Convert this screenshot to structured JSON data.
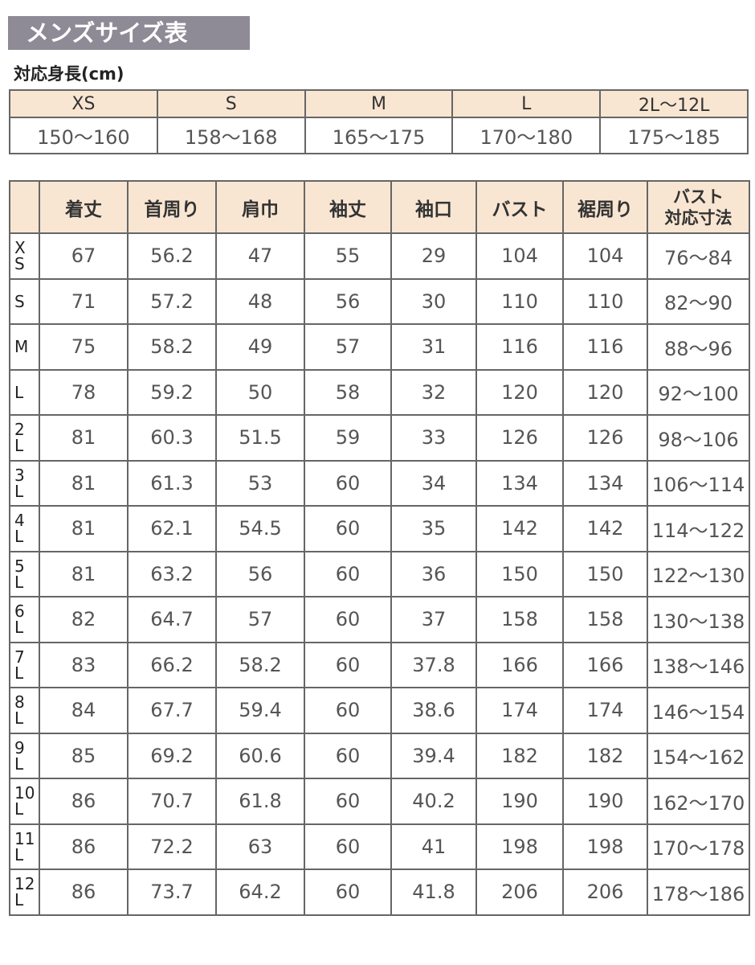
{
  "title": "メンズサイズ表",
  "height_label": "対応身長(cm)",
  "height_table": {
    "sizes": [
      "XS",
      "S",
      "M",
      "L",
      "2L〜12L"
    ],
    "ranges": [
      "150〜160",
      "158〜168",
      "165〜175",
      "170〜180",
      "175〜185"
    ]
  },
  "size_table": {
    "headers": [
      "",
      "着丈",
      "首周り",
      "肩巾",
      "袖丈",
      "袖口",
      "バスト",
      "裾周り",
      "バスト\n対応寸法"
    ],
    "rows": [
      [
        "X\nS",
        "67",
        "56.2",
        "47",
        "55",
        "29",
        "104",
        "104",
        "76〜84"
      ],
      [
        "S",
        "71",
        "57.2",
        "48",
        "56",
        "30",
        "110",
        "110",
        "82〜90"
      ],
      [
        "M",
        "75",
        "58.2",
        "49",
        "57",
        "31",
        "116",
        "116",
        "88〜96"
      ],
      [
        "L",
        "78",
        "59.2",
        "50",
        "58",
        "32",
        "120",
        "120",
        "92〜100"
      ],
      [
        "2\nL",
        "81",
        "60.3",
        "51.5",
        "59",
        "33",
        "126",
        "126",
        "98〜106"
      ],
      [
        "3\nL",
        "81",
        "61.3",
        "53",
        "60",
        "34",
        "134",
        "134",
        "106〜114"
      ],
      [
        "4\nL",
        "81",
        "62.1",
        "54.5",
        "60",
        "35",
        "142",
        "142",
        "114〜122"
      ],
      [
        "5\nL",
        "81",
        "63.2",
        "56",
        "60",
        "36",
        "150",
        "150",
        "122〜130"
      ],
      [
        "6\nL",
        "82",
        "64.7",
        "57",
        "60",
        "37",
        "158",
        "158",
        "130〜138"
      ],
      [
        "7\nL",
        "83",
        "66.2",
        "58.2",
        "60",
        "37.8",
        "166",
        "166",
        "138〜146"
      ],
      [
        "8\nL",
        "84",
        "67.7",
        "59.4",
        "60",
        "38.6",
        "174",
        "174",
        "146〜154"
      ],
      [
        "9\nL",
        "85",
        "69.2",
        "60.6",
        "60",
        "39.4",
        "182",
        "182",
        "154〜162"
      ],
      [
        "10\nL",
        "86",
        "70.7",
        "61.8",
        "60",
        "40.2",
        "190",
        "190",
        "162〜170"
      ],
      [
        "11\nL",
        "86",
        "72.2",
        "63",
        "60",
        "41",
        "198",
        "198",
        "170〜178"
      ],
      [
        "12\nL",
        "86",
        "73.7",
        "64.2",
        "60",
        "41.8",
        "206",
        "206",
        "178〜186"
      ]
    ]
  },
  "colors": {
    "title_bg": "#8e8a96",
    "header_bg": "#f8e6d2",
    "border": "#666666"
  }
}
